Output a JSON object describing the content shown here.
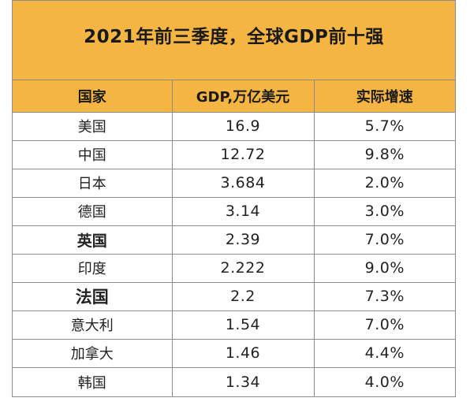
{
  "title": "2021年前三季度，全球GDP前十强",
  "headers": {
    "country": "国家",
    "gdp": "GDP,万亿美元",
    "growth": "实际增速"
  },
  "rows": [
    {
      "country": "美国",
      "gdp": "16.9",
      "growth": "5.7%"
    },
    {
      "country": "中国",
      "gdp": "12.72",
      "growth": "9.8%"
    },
    {
      "country": "日本",
      "gdp": "3.684",
      "growth": "2.0%"
    },
    {
      "country": "德国",
      "gdp": "3.14",
      "growth": "3.0%"
    },
    {
      "country": "英国",
      "gdp": "2.39",
      "growth": "7.0%"
    },
    {
      "country": "印度",
      "gdp": "2.222",
      "growth": "9.0%"
    },
    {
      "country": "法国",
      "gdp": "2.2",
      "growth": "7.3%"
    },
    {
      "country": "意大利",
      "gdp": "1.54",
      "growth": "7.0%"
    },
    {
      "country": "加拿大",
      "gdp": "1.46",
      "growth": "4.4%"
    },
    {
      "country": "韩国",
      "gdp": "1.34",
      "growth": "4.0%"
    }
  ],
  "colors": {
    "header_fill": "#f4b543",
    "grid": "#8c8c8c"
  }
}
